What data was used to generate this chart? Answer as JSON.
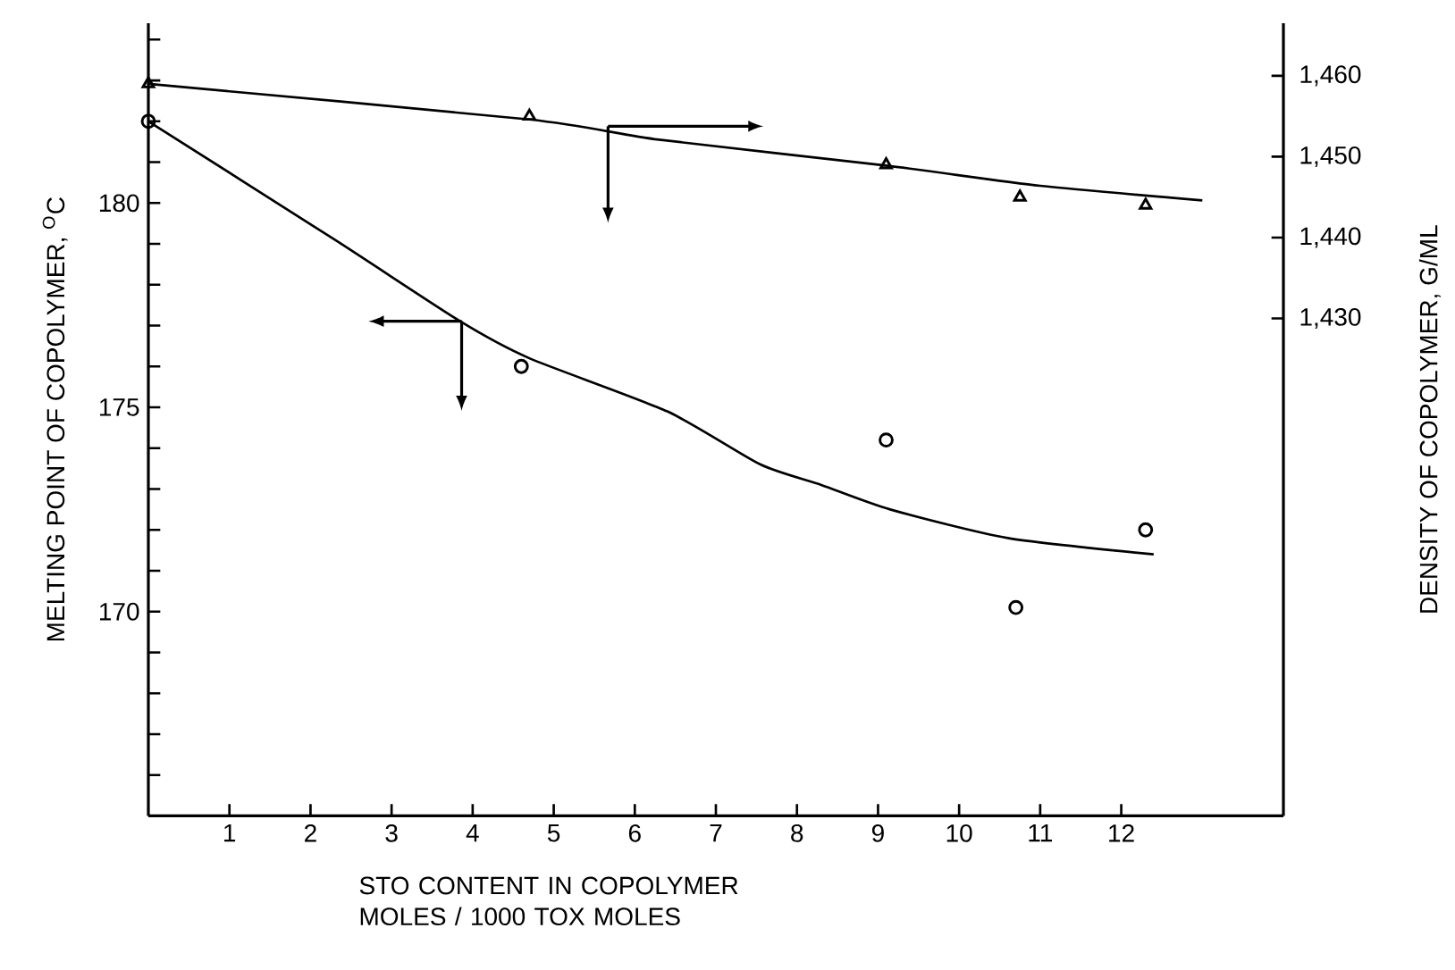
{
  "chart_data": {
    "type": "scatter",
    "xlabel": "STO CONTENT IN COPOLYMER MOLES / 1000 TOX MOLES",
    "ylabel": "MELTING POINT OF COPOLYMER, $^{O}$C",
    "y2label": "DENSITY OF COPOLYMER, G/ML",
    "xlim": [
      0,
      14
    ],
    "xticks": [
      1,
      2,
      3,
      4,
      5,
      6,
      7,
      8,
      9,
      10,
      11,
      12
    ],
    "ylim": [
      165,
      184.4
    ],
    "yticks": [
      {
        "value": 166,
        "label": null
      },
      {
        "value": 167,
        "label": null
      },
      {
        "value": 168,
        "label": null
      },
      {
        "value": 169,
        "label": null
      },
      170,
      {
        "value": 171,
        "label": null
      },
      {
        "value": 172,
        "label": null
      },
      {
        "value": 173,
        "label": null
      },
      {
        "value": 174,
        "label": null
      },
      175,
      {
        "value": 176,
        "label": null
      },
      {
        "value": 177,
        "label": null
      },
      {
        "value": 178,
        "label": null
      },
      {
        "value": 179,
        "label": null
      },
      180,
      {
        "value": 181,
        "label": null
      },
      {
        "value": 182,
        "label": null
      },
      {
        "value": 183,
        "label": null
      },
      {
        "value": 184,
        "label": null
      }
    ],
    "y2lim": [
      1368.5,
      1466.5
    ],
    "y2ticks": [
      {
        "value": 1430,
        "label": "1,430"
      },
      {
        "value": 1440,
        "label": "1,440"
      },
      {
        "value": 1450,
        "label": "1,450"
      },
      {
        "value": 1460,
        "label": "1,460"
      }
    ],
    "grid": false,
    "series": [
      {
        "marker": "circle",
        "color": "#000000",
        "x": [
          0,
          4.6,
          9.1,
          10.7,
          12.3
        ],
        "values": [
          182,
          176,
          174.2,
          170.1,
          172
        ]
      },
      {
        "type": "line",
        "marker": "none",
        "color": "#000000",
        "x": [
          0,
          2.3,
          3.85,
          4.7,
          6.4,
          7.55,
          8.3,
          9.15,
          10.6,
          12.4
        ],
        "values": [
          182,
          179.1,
          177.1,
          176.2,
          174.9,
          173.6,
          173.1,
          172.5,
          171.8,
          171.4
        ]
      },
      {
        "marker": "triangle",
        "axis": "y2",
        "color": "#000000",
        "x": [
          0,
          4.7,
          9.1,
          10.75,
          12.3
        ],
        "values": [
          1459,
          1455,
          1449,
          1445,
          1444
        ]
      },
      {
        "type": "line",
        "marker": "none",
        "axis": "y2",
        "color": "#000000",
        "x": [
          0,
          4.7,
          6.3,
          9.1,
          11,
          13
        ],
        "values": [
          1459,
          1454.6,
          1452.1,
          1448.9,
          1446.4,
          1444.6
        ]
      }
    ]
  }
}
